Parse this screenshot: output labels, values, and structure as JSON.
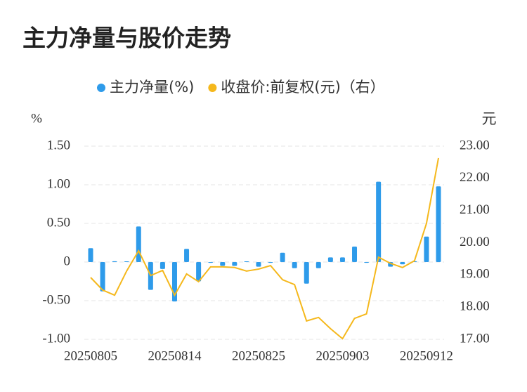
{
  "chart_data": {
    "type": "bar",
    "title": "主力净量与股价走势",
    "y_label": "%",
    "y2_label": "元",
    "categories": [
      "20250805",
      null,
      null,
      null,
      null,
      null,
      null,
      "20250814",
      null,
      null,
      null,
      null,
      null,
      null,
      "20250825",
      null,
      null,
      null,
      null,
      null,
      null,
      "20250903",
      null,
      null,
      null,
      null,
      null,
      null,
      "20250912",
      null
    ],
    "series": [
      {
        "name": "主力净量(%)",
        "type": "bar",
        "color": "#2e9bea",
        "values": [
          0.18,
          -0.38,
          0.01,
          0,
          0.46,
          -0.36,
          -0.09,
          -0.51,
          0.17,
          -0.25,
          -0.01,
          -0.05,
          -0.05,
          0,
          -0.06,
          -0.01,
          0.12,
          -0.08,
          -0.28,
          -0.08,
          0.06,
          0.06,
          0.2,
          -0.01,
          1.04,
          -0.06,
          -0.03,
          0.01,
          0.33,
          0.98
        ]
      },
      {
        "name": "收盘价:前复权(元)（右）",
        "type": "line",
        "axis": "y2",
        "color": "#f5b81c",
        "values": [
          18.92,
          18.53,
          18.37,
          19.12,
          19.75,
          18.98,
          19.14,
          18.37,
          19.03,
          18.79,
          19.25,
          19.25,
          19.23,
          19.12,
          19.18,
          19.29,
          18.85,
          18.7,
          17.57,
          17.68,
          17.33,
          17.02,
          17.65,
          17.79,
          19.55,
          19.36,
          19.23,
          19.44,
          20.6,
          22.63
        ]
      }
    ],
    "ylim": [
      -1,
      1.5
    ],
    "yticks": [
      {
        "value": -1,
        "label": "-1.00"
      },
      {
        "value": -0.5,
        "label": "-0.50"
      },
      0,
      {
        "value": 0.5,
        "label": "0.50"
      },
      {
        "value": 1,
        "label": "1.00"
      },
      {
        "value": 1.5,
        "label": "1.50"
      }
    ],
    "y2lim": [
      17,
      23
    ],
    "y2ticks": [
      {
        "value": 17,
        "label": "17.00"
      },
      {
        "value": 18,
        "label": "18.00"
      },
      {
        "value": 19,
        "label": "19.00"
      },
      {
        "value": 20,
        "label": "20.00"
      },
      {
        "value": 21,
        "label": "21.00"
      },
      {
        "value": 22,
        "label": "22.00"
      },
      {
        "value": 23,
        "label": "23.00"
      }
    ],
    "grid": true,
    "legend": "top"
  }
}
